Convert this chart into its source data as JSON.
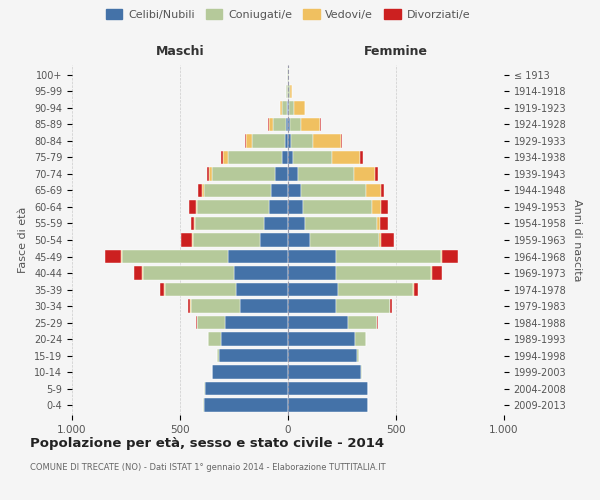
{
  "age_groups": [
    "0-4",
    "5-9",
    "10-14",
    "15-19",
    "20-24",
    "25-29",
    "30-34",
    "35-39",
    "40-44",
    "45-49",
    "50-54",
    "55-59",
    "60-64",
    "65-69",
    "70-74",
    "75-79",
    "80-84",
    "85-89",
    "90-94",
    "95-99",
    "100+"
  ],
  "birth_years": [
    "2009-2013",
    "2004-2008",
    "1999-2003",
    "1994-1998",
    "1989-1993",
    "1984-1988",
    "1979-1983",
    "1974-1978",
    "1969-1973",
    "1964-1968",
    "1959-1963",
    "1954-1958",
    "1949-1953",
    "1944-1948",
    "1939-1943",
    "1934-1938",
    "1929-1933",
    "1924-1928",
    "1919-1923",
    "1914-1918",
    "≤ 1913"
  ],
  "males": {
    "celibi": [
      390,
      385,
      350,
      320,
      310,
      290,
      220,
      240,
      250,
      280,
      130,
      110,
      90,
      80,
      60,
      30,
      15,
      10,
      5,
      2,
      2
    ],
    "coniugati": [
      2,
      2,
      2,
      10,
      60,
      130,
      230,
      330,
      420,
      490,
      310,
      320,
      330,
      310,
      290,
      250,
      150,
      60,
      25,
      5,
      2
    ],
    "vedovi": [
      0,
      0,
      0,
      0,
      0,
      1,
      2,
      3,
      5,
      5,
      5,
      5,
      5,
      10,
      15,
      20,
      30,
      20,
      8,
      2,
      0
    ],
    "divorziati": [
      0,
      0,
      0,
      0,
      2,
      5,
      10,
      20,
      40,
      70,
      50,
      15,
      35,
      15,
      12,
      10,
      5,
      2,
      0,
      0,
      0
    ]
  },
  "females": {
    "nubili": [
      370,
      370,
      340,
      320,
      310,
      280,
      220,
      230,
      220,
      220,
      100,
      80,
      70,
      60,
      45,
      25,
      15,
      10,
      5,
      2,
      2
    ],
    "coniugate": [
      2,
      2,
      2,
      10,
      50,
      130,
      250,
      350,
      440,
      490,
      320,
      330,
      320,
      300,
      260,
      180,
      100,
      50,
      25,
      5,
      2
    ],
    "vedove": [
      0,
      0,
      0,
      0,
      0,
      1,
      2,
      3,
      5,
      5,
      10,
      15,
      40,
      70,
      100,
      130,
      130,
      90,
      50,
      10,
      2
    ],
    "divorziate": [
      0,
      0,
      0,
      0,
      2,
      5,
      10,
      20,
      50,
      70,
      60,
      40,
      35,
      15,
      12,
      10,
      5,
      2,
      0,
      0,
      0
    ]
  },
  "colors": {
    "celibi": "#4472a8",
    "coniugati": "#b5c99a",
    "vedovi": "#f0c060",
    "divorziati": "#cc2020"
  },
  "title": "Popolazione per età, sesso e stato civile - 2014",
  "subtitle": "COMUNE DI TRECATE (NO) - Dati ISTAT 1° gennaio 2014 - Elaborazione TUTTITALIA.IT",
  "xlabel_left": "Maschi",
  "xlabel_right": "Femmine",
  "ylabel_left": "Fasce di età",
  "ylabel_right": "Anni di nascita",
  "xlim": 1000,
  "legend_labels": [
    "Celibi/Nubili",
    "Coniugati/e",
    "Vedovi/e",
    "Divorziati/e"
  ],
  "bg_color": "#f5f5f5"
}
